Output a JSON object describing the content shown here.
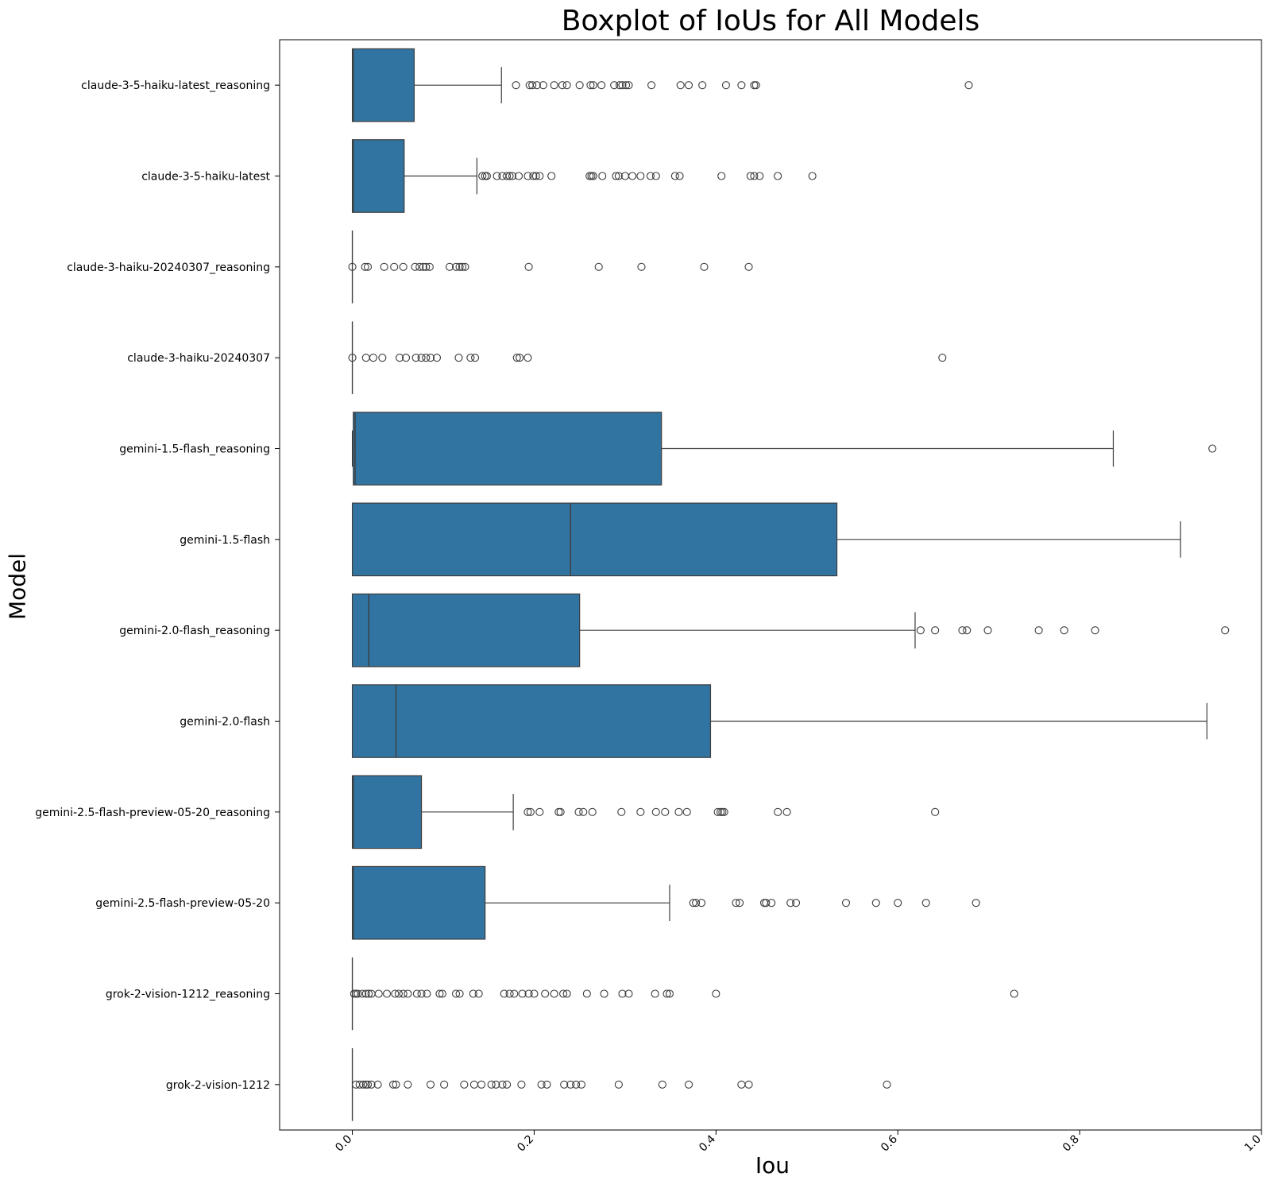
{
  "chart_data": {
    "type": "boxplot",
    "title": "Boxplot of IoUs for All Models",
    "xlabel": "Iou",
    "ylabel": "Model",
    "xlim": [
      -0.08,
      1.0
    ],
    "xticks": [
      "0.0",
      "0.2",
      "0.4",
      "0.6",
      "0.8",
      "1.0"
    ],
    "grid": false,
    "colors": {
      "box": "#3274a1",
      "line": "#3d3d3d",
      "outlier": "#3d3d3d"
    },
    "categories": [
      "claude-3-5-haiku-latest_reasoning",
      "claude-3-5-haiku-latest",
      "claude-3-haiku-20240307_reasoning",
      "claude-3-haiku-20240307",
      "gemini-1.5-flash_reasoning",
      "gemini-1.5-flash",
      "gemini-2.0-flash_reasoning",
      "gemini-2.0-flash",
      "gemini-2.5-flash-preview-05-20_reasoning",
      "gemini-2.5-flash-preview-05-20",
      "grok-2-vision-1212_reasoning",
      "grok-2-vision-1212"
    ],
    "boxes": [
      {
        "min": 0.0,
        "q1": 0.0,
        "median": 0.001,
        "q3": 0.068,
        "max": 0.164,
        "outliers": [
          0.18,
          0.195,
          0.198,
          0.203,
          0.21,
          0.222,
          0.231,
          0.236,
          0.25,
          0.262,
          0.265,
          0.274,
          0.288,
          0.294,
          0.297,
          0.301,
          0.304,
          0.329,
          0.361,
          0.37,
          0.385,
          0.411,
          0.428,
          0.442,
          0.444,
          0.678
        ]
      },
      {
        "min": 0.0,
        "q1": 0.0,
        "median": 0.001,
        "q3": 0.057,
        "max": 0.137,
        "outliers": [
          0.143,
          0.146,
          0.148,
          0.159,
          0.165,
          0.17,
          0.173,
          0.176,
          0.183,
          0.193,
          0.199,
          0.202,
          0.206,
          0.219,
          0.261,
          0.263,
          0.265,
          0.275,
          0.29,
          0.293,
          0.3,
          0.308,
          0.317,
          0.328,
          0.334,
          0.355,
          0.36,
          0.406,
          0.438,
          0.442,
          0.448,
          0.468,
          0.506
        ]
      },
      {
        "min": 0.0,
        "q1": 0.0,
        "median": 0.0,
        "q3": 0.0,
        "max": 0.0,
        "outliers": [
          0.0,
          0.014,
          0.017,
          0.035,
          0.046,
          0.056,
          0.069,
          0.074,
          0.078,
          0.081,
          0.085,
          0.107,
          0.114,
          0.118,
          0.121,
          0.124,
          0.194,
          0.271,
          0.318,
          0.387,
          0.436
        ]
      },
      {
        "min": 0.0,
        "q1": 0.0,
        "median": 0.0,
        "q3": 0.0,
        "max": 0.0,
        "outliers": [
          0.0,
          0.015,
          0.023,
          0.033,
          0.052,
          0.059,
          0.07,
          0.076,
          0.081,
          0.086,
          0.093,
          0.117,
          0.13,
          0.135,
          0.181,
          0.184,
          0.193,
          0.649
        ]
      },
      {
        "min": 0.0,
        "q1": 0.001,
        "median": 0.003,
        "q3": 0.34,
        "max": 0.837,
        "outliers": [
          0.946
        ]
      },
      {
        "min": 0.0,
        "q1": 0.0,
        "median": 0.24,
        "q3": 0.533,
        "max": 0.911,
        "outliers": []
      },
      {
        "min": 0.0,
        "q1": 0.0,
        "median": 0.018,
        "q3": 0.25,
        "max": 0.619,
        "outliers": [
          0.625,
          0.641,
          0.671,
          0.676,
          0.699,
          0.755,
          0.783,
          0.817,
          0.96
        ]
      },
      {
        "min": 0.0,
        "q1": 0.0,
        "median": 0.048,
        "q3": 0.394,
        "max": 0.94,
        "outliers": []
      },
      {
        "min": 0.0,
        "q1": 0.0,
        "median": 0.001,
        "q3": 0.076,
        "max": 0.177,
        "outliers": [
          0.193,
          0.196,
          0.206,
          0.227,
          0.229,
          0.249,
          0.254,
          0.264,
          0.296,
          0.317,
          0.334,
          0.344,
          0.359,
          0.368,
          0.402,
          0.405,
          0.407,
          0.409,
          0.468,
          0.478,
          0.641
        ]
      },
      {
        "min": 0.0,
        "q1": 0.0,
        "median": 0.001,
        "q3": 0.146,
        "max": 0.349,
        "outliers": [
          0.375,
          0.378,
          0.384,
          0.422,
          0.426,
          0.453,
          0.455,
          0.461,
          0.482,
          0.488,
          0.543,
          0.576,
          0.6,
          0.631,
          0.686
        ]
      },
      {
        "min": 0.0,
        "q1": 0.0,
        "median": 0.0,
        "q3": 0.0,
        "max": 0.0,
        "outliers": [
          0.002,
          0.004,
          0.006,
          0.011,
          0.015,
          0.018,
          0.021,
          0.029,
          0.038,
          0.047,
          0.051,
          0.056,
          0.061,
          0.071,
          0.076,
          0.082,
          0.096,
          0.099,
          0.114,
          0.118,
          0.133,
          0.139,
          0.167,
          0.173,
          0.178,
          0.187,
          0.194,
          0.2,
          0.212,
          0.222,
          0.232,
          0.236,
          0.258,
          0.277,
          0.297,
          0.304,
          0.333,
          0.346,
          0.349,
          0.4,
          0.728
        ]
      },
      {
        "min": 0.0,
        "q1": 0.0,
        "median": 0.0,
        "q3": 0.0,
        "max": 0.0,
        "outliers": [
          0.004,
          0.008,
          0.012,
          0.015,
          0.017,
          0.021,
          0.028,
          0.045,
          0.048,
          0.061,
          0.086,
          0.101,
          0.123,
          0.134,
          0.142,
          0.153,
          0.158,
          0.165,
          0.17,
          0.186,
          0.208,
          0.214,
          0.233,
          0.24,
          0.246,
          0.252,
          0.293,
          0.341,
          0.37,
          0.428,
          0.436,
          0.588
        ]
      }
    ]
  }
}
